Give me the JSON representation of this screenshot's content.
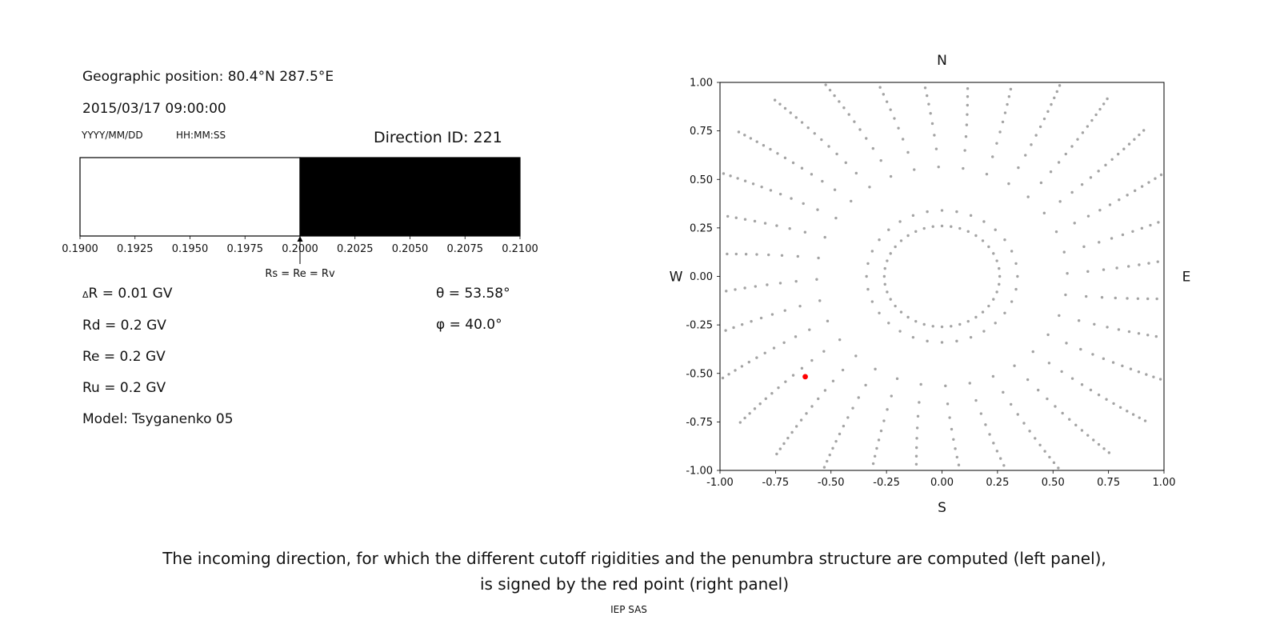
{
  "left_panel": {
    "geo_position": "Geographic position: 80.4°N 287.5°E",
    "datetime": "2015/03/17 09:00:00",
    "date_format_label": "YYYY/MM/DD",
    "time_format_label": "HH:MM:SS",
    "direction_id_label": "Direction ID: 221",
    "delta_row": {
      "symbol": "Δ",
      "rest": "R = 0.01 GV"
    },
    "theta_label": "θ = 53.58°",
    "phi_label": "φ = 40.0°",
    "params": [
      "Rd = 0.2 GV",
      "Re = 0.2 GV",
      "Ru = 0.2 GV",
      "Model: Tsyganenko 05"
    ]
  },
  "caption": {
    "line1": "The incoming direction, for which the different cutoff rigidities and the penumbra structure are computed (left panel),",
    "line2": "is signed by the red point (right panel)",
    "credit": "IEP SAS"
  },
  "chart_data": [
    {
      "id": "penumbra-bar",
      "type": "bar",
      "title": "",
      "xlabel": "",
      "xlim": [
        0.19,
        0.21
      ],
      "xticks": [
        0.19,
        0.1925,
        0.195,
        0.1975,
        0.2,
        0.2025,
        0.205,
        0.2075,
        0.21
      ],
      "tick_decimals": 4,
      "segments": [
        {
          "from": 0.19,
          "to": 0.2,
          "color": "#ffffff"
        },
        {
          "from": 0.2,
          "to": 0.21,
          "color": "#000000"
        }
      ],
      "annotation": {
        "x": 0.2,
        "label": "Rs = Re = Rv"
      }
    },
    {
      "id": "arrival-direction-map",
      "type": "scatter",
      "xlim": [
        -1,
        1
      ],
      "ylim": [
        -1,
        1
      ],
      "xticks": [
        -1,
        -0.75,
        -0.5,
        -0.25,
        0,
        0.25,
        0.5,
        0.75,
        1
      ],
      "yticks": [
        -1,
        -0.75,
        -0.5,
        -0.25,
        0,
        0.25,
        0.5,
        0.75,
        1
      ],
      "tick_decimals": 2,
      "grid": false,
      "compass": {
        "top": "N",
        "right": "E",
        "bottom": "S",
        "left": "W"
      },
      "dot_color": "#999999",
      "highlight_point": {
        "x": -0.616,
        "y": -0.517,
        "color": "#ff0000"
      },
      "pattern": {
        "inner_ring": {
          "radius": 0.26,
          "count": 40
        },
        "spokes": {
          "count": 32,
          "start_angle_deg": 0,
          "dots_per_spoke": 15,
          "r_min": 0.34,
          "r_max": 1.18,
          "cluster_power": 0.5,
          "curvature_deg_per_unit_r": 7
        }
      }
    }
  ]
}
